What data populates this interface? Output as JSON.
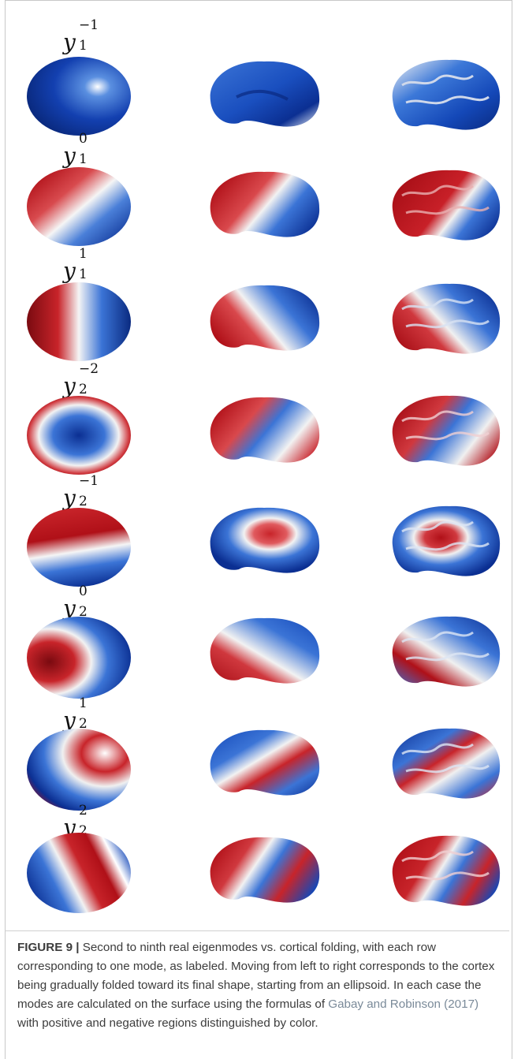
{
  "modes": [
    {
      "base": "y",
      "sub": "1",
      "sup": "−1"
    },
    {
      "base": "y",
      "sub": "1",
      "sup": "0"
    },
    {
      "base": "y",
      "sub": "1",
      "sup": "1"
    },
    {
      "base": "y",
      "sub": "2",
      "sup": "−2"
    },
    {
      "base": "y",
      "sub": "2",
      "sup": "−1"
    },
    {
      "base": "y",
      "sub": "2",
      "sup": "0"
    },
    {
      "base": "y",
      "sub": "2",
      "sup": "1"
    },
    {
      "base": "y",
      "sub": "2",
      "sup": "2"
    }
  ],
  "caption": {
    "label": "FIGURE 9 |",
    "text_before": " Second to ninth real eigenmodes vs. cortical folding, with each row corresponding to one mode, as labeled. Moving from left to right corresponds to the cortex being gradually folded toward its final shape, starting from an ellipsoid. In each case the modes are calculated on the surface using the formulas of ",
    "citation": "Gabay and Robinson (2017)",
    "text_after": " with positive and negative regions distinguished by color."
  },
  "colors": {
    "positive": "#c0141c",
    "negative": "#0d3fa8",
    "neutral": "#f2f2f2"
  }
}
